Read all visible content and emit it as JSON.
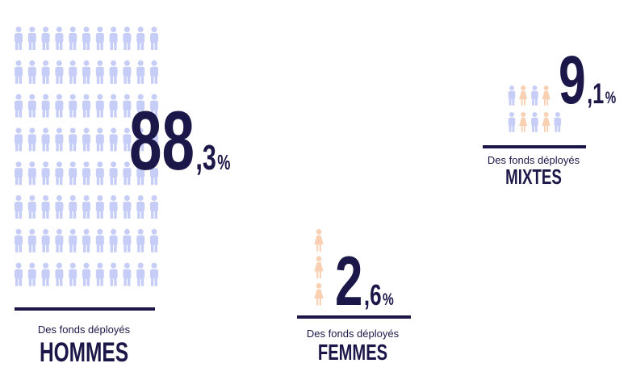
{
  "chart_data": {
    "type": "pictogram",
    "caption": "Des fonds déployés",
    "categories": [
      "HOMMES",
      "FEMMES",
      "MIXTES"
    ],
    "values": [
      88.3,
      2.6,
      9.1
    ],
    "value_labels": [
      "88,3%",
      "2,6%",
      "9,1%"
    ],
    "colors": {
      "men": "#c6cdf6",
      "women": "#f9d0b2",
      "text": "#1b1748"
    }
  }
}
